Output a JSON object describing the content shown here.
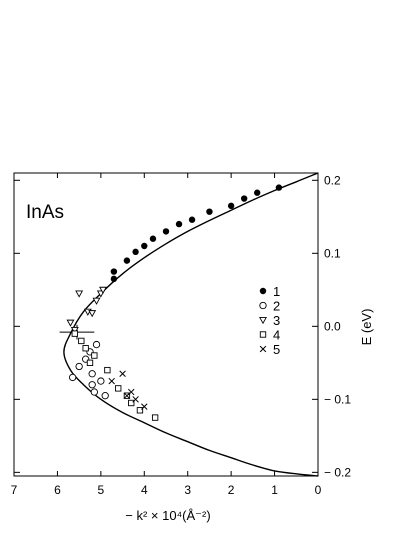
{
  "chart_data": {
    "type": "scatter",
    "annotation": "InAs",
    "xlabel": "− k² × 10⁴(Å⁻²)",
    "ylabel": "E (eV)",
    "xlim": [
      7,
      0
    ],
    "ylim": [
      -0.205,
      0.21
    ],
    "x_reversed": true,
    "y_axis_side": "right",
    "xticks": [
      7,
      6,
      5,
      4,
      3,
      2,
      1,
      0
    ],
    "yticks": [
      0.2,
      0.1,
      0.0,
      -0.1,
      -0.2
    ],
    "ytick_labels": [
      "0.2",
      "0.1",
      "0.0",
      "− 0.1",
      "− 0.2"
    ],
    "legend_position": "right-center",
    "series": [
      {
        "name": "1",
        "marker": "filled-circle",
        "x": [
          0.9,
          1.4,
          1.7,
          2.0,
          2.5,
          2.9,
          3.2,
          3.5,
          3.8,
          4.0,
          4.2,
          4.4,
          4.7,
          4.7
        ],
        "y": [
          0.19,
          0.183,
          0.175,
          0.165,
          0.157,
          0.146,
          0.14,
          0.13,
          0.12,
          0.11,
          0.102,
          0.09,
          0.075,
          0.065
        ]
      },
      {
        "name": "2",
        "marker": "open-circle",
        "x": [
          5.65,
          5.5,
          5.35,
          5.25,
          5.1,
          5.2,
          5.0,
          4.9,
          5.2,
          5.15
        ],
        "y": [
          -0.07,
          -0.055,
          -0.045,
          -0.035,
          -0.025,
          -0.065,
          -0.075,
          -0.095,
          -0.08,
          -0.09
        ]
      },
      {
        "name": "3",
        "marker": "open-triangle-down",
        "x": [
          5.7,
          5.6,
          5.5,
          5.3,
          5.2,
          5.1,
          5.0,
          4.95
        ],
        "y": [
          0.005,
          -0.005,
          0.045,
          0.02,
          0.018,
          0.035,
          0.045,
          0.05
        ]
      },
      {
        "name": "4",
        "marker": "open-square",
        "x": [
          5.6,
          5.45,
          5.35,
          5.25,
          5.15,
          4.85,
          4.6,
          4.4,
          4.3,
          4.1,
          3.75
        ],
        "y": [
          -0.01,
          -0.02,
          -0.03,
          -0.05,
          -0.04,
          -0.06,
          -0.085,
          -0.095,
          -0.105,
          -0.115,
          -0.125
        ]
      },
      {
        "name": "5",
        "marker": "cross",
        "x": [
          4.75,
          4.5,
          4.3,
          4.2,
          4.4,
          4.0
        ],
        "y": [
          -0.075,
          -0.065,
          -0.09,
          -0.1,
          -0.095,
          -0.11
        ]
      }
    ],
    "fit_curve": {
      "x": [
        0.0,
        0.5,
        1.0,
        1.5,
        2.0,
        2.5,
        3.0,
        3.5,
        4.0,
        4.5,
        5.0,
        5.4,
        5.7,
        5.85,
        5.7,
        5.4,
        5.0,
        4.5,
        4.0,
        3.5,
        3.0,
        2.5,
        2.0,
        1.5,
        1.0,
        0.5,
        0.0
      ],
      "y": [
        0.21,
        0.198,
        0.186,
        0.173,
        0.159,
        0.145,
        0.13,
        0.113,
        0.094,
        0.072,
        0.045,
        0.02,
        -0.01,
        -0.035,
        -0.06,
        -0.08,
        -0.1,
        -0.118,
        -0.132,
        -0.146,
        -0.158,
        -0.17,
        -0.18,
        -0.19,
        -0.198,
        -0.202,
        -0.205
      ]
    },
    "error_bar": {
      "x": 5.55,
      "y": -0.008,
      "x_minus": 0.4,
      "x_plus": 0.4,
      "y_err": 0.01
    }
  }
}
